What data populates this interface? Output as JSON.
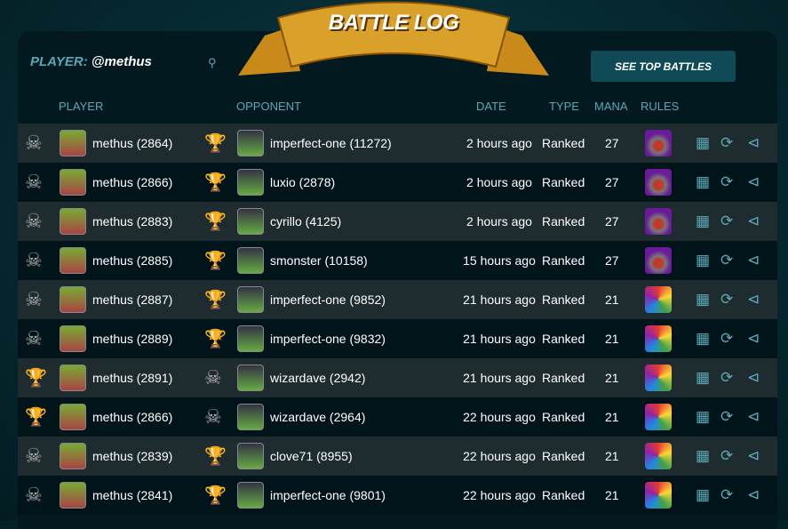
{
  "title": "BATTLE LOG",
  "player_label": "PLAYER:",
  "player_name": "@methus",
  "see_top_battles": "SEE TOP BATTLES",
  "headers": {
    "player": "PLAYER",
    "opponent": "OPPONENT",
    "date": "DATE",
    "type": "TYPE",
    "mana": "MANA",
    "rules": "RULES"
  },
  "colors": {
    "accent": "#5aa8b6",
    "button": "#0f4a56",
    "row_dark": "#00141a",
    "row_light": "#1f2c2f"
  },
  "rows": [
    {
      "player": "methus (2864)",
      "opponent": "imperfect-one (11272)",
      "date": "2 hours ago",
      "type": "Ranked",
      "mana": "27",
      "winner": "opponent",
      "rule": "hooded-icon"
    },
    {
      "player": "methus (2866)",
      "opponent": "luxio (2878)",
      "date": "2 hours ago",
      "type": "Ranked",
      "mana": "27",
      "winner": "opponent",
      "rule": "hooded-icon"
    },
    {
      "player": "methus (2883)",
      "opponent": "cyrillo (4125)",
      "date": "2 hours ago",
      "type": "Ranked",
      "mana": "27",
      "winner": "opponent",
      "rule": "hooded-icon"
    },
    {
      "player": "methus (2885)",
      "opponent": "smonster (10158)",
      "date": "15 hours ago",
      "type": "Ranked",
      "mana": "27",
      "winner": "opponent",
      "rule": "hooded-icon"
    },
    {
      "player": "methus (2887)",
      "opponent": "imperfect-one (9852)",
      "date": "21 hours ago",
      "type": "Ranked",
      "mana": "21",
      "winner": "opponent",
      "rule": "rainbow-icon"
    },
    {
      "player": "methus (2889)",
      "opponent": "imperfect-one (9832)",
      "date": "21 hours ago",
      "type": "Ranked",
      "mana": "21",
      "winner": "opponent",
      "rule": "rainbow-icon"
    },
    {
      "player": "methus (2891)",
      "opponent": "wizardave (2942)",
      "date": "21 hours ago",
      "type": "Ranked",
      "mana": "21",
      "winner": "player",
      "rule": "rainbow-icon"
    },
    {
      "player": "methus (2866)",
      "opponent": "wizardave (2964)",
      "date": "22 hours ago",
      "type": "Ranked",
      "mana": "21",
      "winner": "player",
      "rule": "rainbow-icon"
    },
    {
      "player": "methus (2839)",
      "opponent": "clove71 (8955)",
      "date": "22 hours ago",
      "type": "Ranked",
      "mana": "21",
      "winner": "opponent",
      "rule": "rainbow-icon"
    },
    {
      "player": "methus (2841)",
      "opponent": "imperfect-one (9801)",
      "date": "22 hours ago",
      "type": "Ranked",
      "mana": "21",
      "winner": "opponent",
      "rule": "rainbow-icon"
    }
  ]
}
